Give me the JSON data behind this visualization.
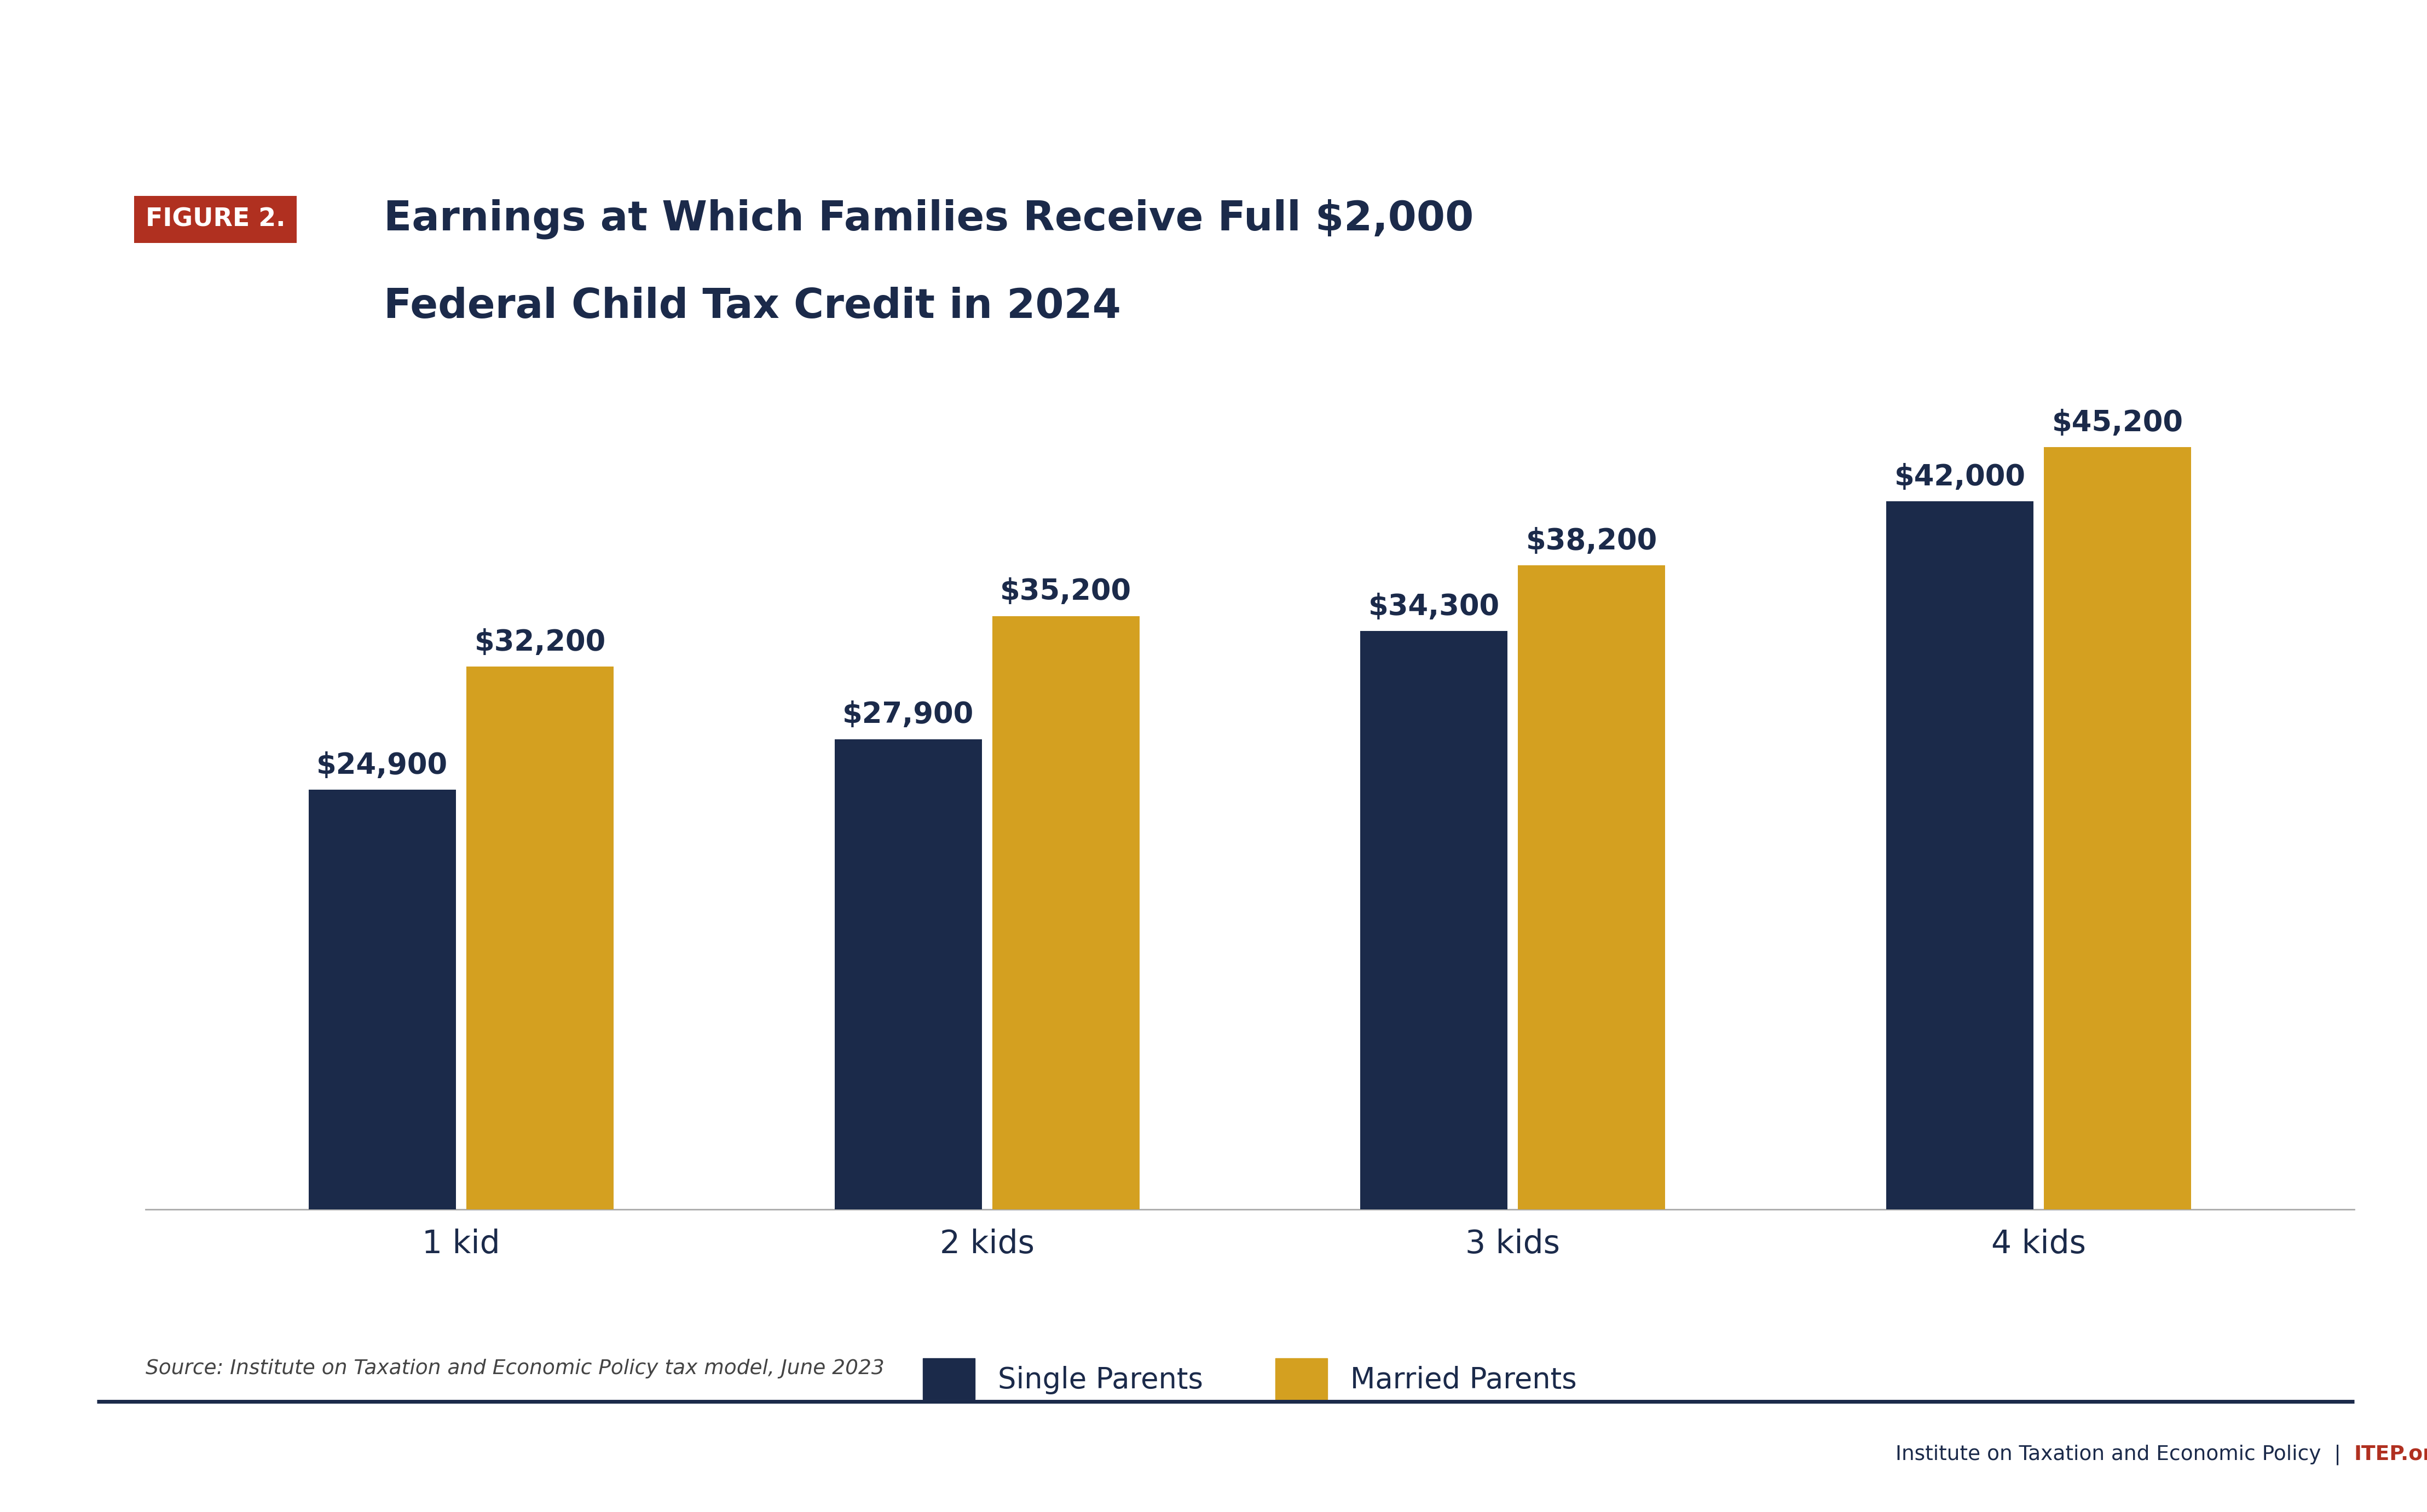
{
  "title_line1": "Earnings at Which Families Receive Full $2,000",
  "title_line2": "Federal Child Tax Credit in 2024",
  "figure_label": "FIGURE 2.",
  "categories": [
    "1 kid",
    "2 kids",
    "3 kids",
    "4 kids"
  ],
  "single_parents": [
    24900,
    27900,
    34300,
    42000
  ],
  "married_parents": [
    32200,
    35200,
    38200,
    45200
  ],
  "single_labels": [
    "$24,900",
    "$27,900",
    "$34,300",
    "$42,000"
  ],
  "married_labels": [
    "$32,200",
    "$35,200",
    "$38,200",
    "$45,200"
  ],
  "single_color": "#1b2a4a",
  "married_color": "#d4a020",
  "title_color": "#1b2a4a",
  "figure_label_bg": "#b03020",
  "figure_label_text": "#ffffff",
  "source_text": "Source: Institute on Taxation and Economic Policy tax model, June 2023",
  "footer_main": "Institute on Taxation and Economic Policy  |  ",
  "footer_itep": "ITEP.org",
  "footer_color": "#1b2a4a",
  "footer_itep_color": "#b03020",
  "legend_single": "Single Parents",
  "legend_married": "Married Parents",
  "background_color": "#ffffff",
  "bar_width": 0.28,
  "ylim": [
    0,
    52000
  ],
  "separator_line_color": "#1b2a4a"
}
